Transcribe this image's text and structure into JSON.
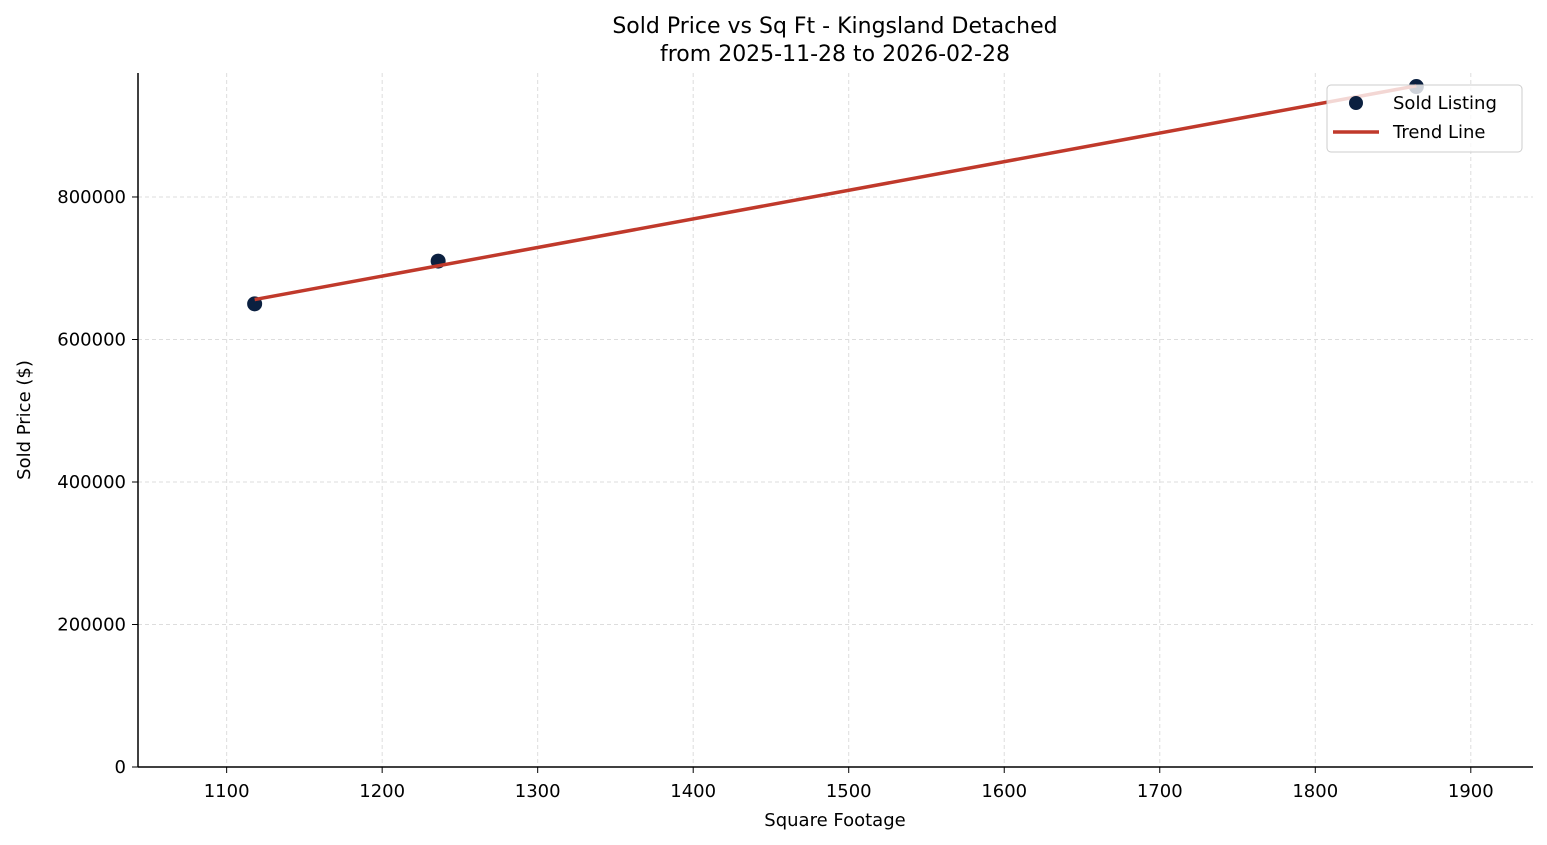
{
  "chart_data": {
    "type": "scatter",
    "title": "Sold Price vs Sq Ft - Kingsland Detached",
    "subtitle": "from 2025-11-28 to 2026-02-28",
    "xlabel": "Square Footage",
    "ylabel": "Sold Price ($)",
    "xlim": [
      1043,
      1940
    ],
    "ylim": [
      0,
      974000
    ],
    "xticks": [
      1100,
      1200,
      1300,
      1400,
      1500,
      1600,
      1700,
      1800,
      1900
    ],
    "yticks": [
      0,
      200000,
      400000,
      600000,
      800000
    ],
    "grid": true,
    "legend_position": "top-right",
    "series": [
      {
        "name": "Sold Listing",
        "kind": "scatter",
        "color": "#0b2040",
        "points": [
          [
            1118,
            650000
          ],
          [
            1236,
            710000
          ],
          [
            1865,
            955000
          ]
        ]
      },
      {
        "name": "Trend Line",
        "kind": "line",
        "color": "#c0392b",
        "points": [
          [
            1118,
            656000
          ],
          [
            1865,
            956000
          ]
        ]
      }
    ]
  }
}
